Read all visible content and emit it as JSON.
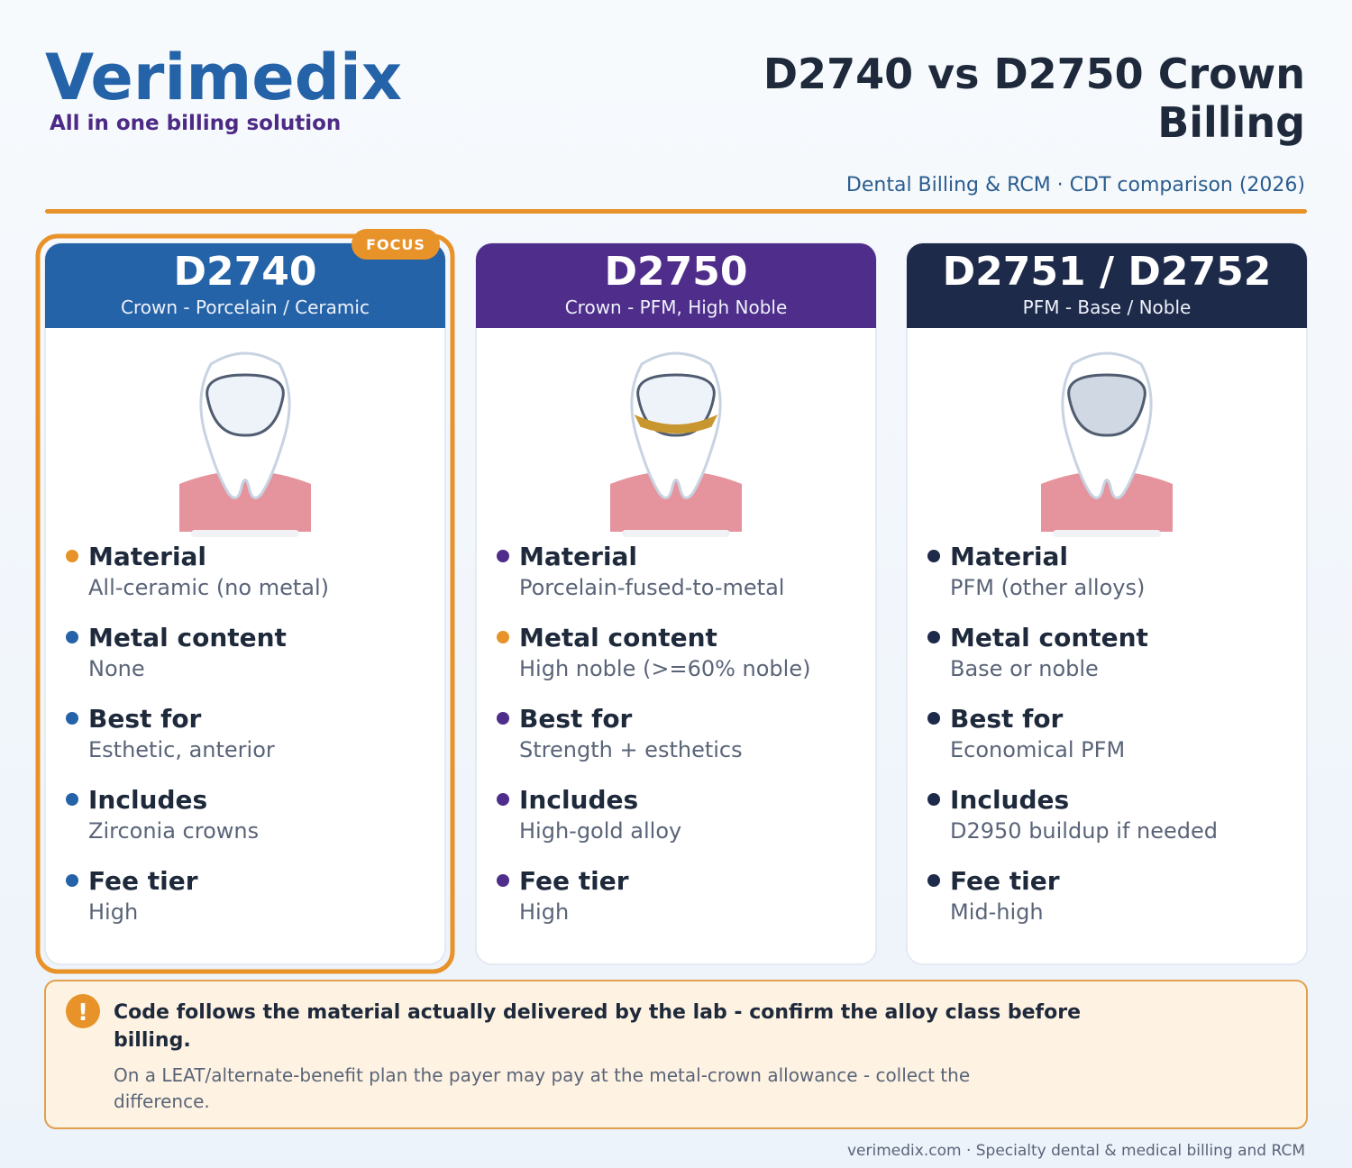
{
  "header": {
    "brand": "Verimedix",
    "tagline": "All in one billing solution",
    "title_lines": [
      "D2740 vs D2750 Crown",
      "Billing"
    ],
    "subtitle": "Dental Billing & RCM · CDT comparison (2026)"
  },
  "cards": [
    {
      "code": "D2740",
      "subtitle": "Crown - Porcelain / Ceramic",
      "badge": "FOCUS",
      "items": [
        {
          "label": "Material",
          "value": "All-ceramic (no metal)"
        },
        {
          "label": "Metal content",
          "value": "None"
        },
        {
          "label": "Best for",
          "value": "Esthetic, anterior"
        },
        {
          "label": "Includes",
          "value": "Zirconia crowns"
        },
        {
          "label": "Fee tier",
          "value": "High"
        }
      ]
    },
    {
      "code": "D2750",
      "subtitle": "Crown - PFM, High Noble",
      "items": [
        {
          "label": "Material",
          "value": "Porcelain-fused-to-metal"
        },
        {
          "label": "Metal content",
          "value": "High noble (>=60% noble)"
        },
        {
          "label": "Best for",
          "value": "Strength + esthetics"
        },
        {
          "label": "Includes",
          "value": "High-gold alloy"
        },
        {
          "label": "Fee tier",
          "value": "High"
        }
      ]
    },
    {
      "code": "D2751 / D2752",
      "subtitle": "PFM - Base / Noble",
      "items": [
        {
          "label": "Material",
          "value": "PFM (other alloys)"
        },
        {
          "label": "Metal content",
          "value": "Base or noble"
        },
        {
          "label": "Best for",
          "value": "Economical PFM"
        },
        {
          "label": "Includes",
          "value": "D2950 buildup if needed"
        },
        {
          "label": "Fee tier",
          "value": "Mid-high"
        }
      ]
    }
  ],
  "note": {
    "title_lines": [
      "Code follows the material actually delivered by the lab - confirm the alloy class before",
      "billing."
    ],
    "body_lines": [
      "On a LEAT/alternate-benefit plan the payer may pay at the metal-crown allowance - collect the",
      "difference."
    ]
  },
  "footer": "verimedix.com · Specialty dental & medical billing and RCM"
}
